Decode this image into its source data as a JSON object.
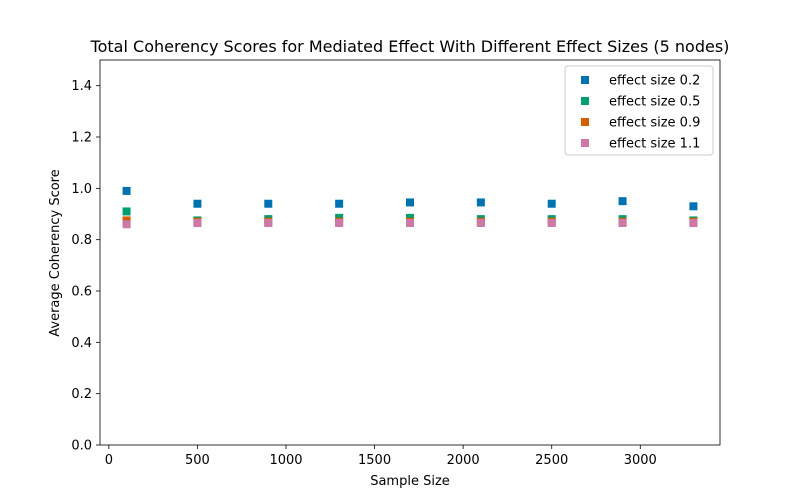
{
  "chart_data": {
    "type": "scatter",
    "title": "Total Coherency Scores for Mediated Effect With Different Effect Sizes (5 nodes)",
    "xlabel": "Sample Size",
    "ylabel": "Average Coherency Score",
    "xlim": [
      -50,
      3450
    ],
    "ylim": [
      0.0,
      1.5
    ],
    "xticks": [
      0,
      500,
      1000,
      1500,
      2000,
      2500,
      3000
    ],
    "yticks": [
      0.0,
      0.2,
      0.4,
      0.6,
      0.8,
      1.0,
      1.2,
      1.4
    ],
    "grid": false,
    "legend_position": "top-right",
    "marker": "square",
    "x": [
      100,
      500,
      900,
      1300,
      1700,
      2100,
      2500,
      2900,
      3300
    ],
    "series": [
      {
        "name": "effect size 0.2",
        "color": "#0072b2",
        "values": [
          0.99,
          0.94,
          0.94,
          0.94,
          0.945,
          0.945,
          0.94,
          0.95,
          0.93
        ]
      },
      {
        "name": "effect size 0.5",
        "color": "#009e73",
        "values": [
          0.91,
          0.875,
          0.88,
          0.885,
          0.885,
          0.88,
          0.88,
          0.88,
          0.875
        ]
      },
      {
        "name": "effect size 0.9",
        "color": "#d55e00",
        "values": [
          0.875,
          0.87,
          0.87,
          0.87,
          0.87,
          0.87,
          0.87,
          0.87,
          0.87
        ]
      },
      {
        "name": "effect size 1.1",
        "color": "#cc79a7",
        "values": [
          0.86,
          0.865,
          0.865,
          0.865,
          0.865,
          0.865,
          0.865,
          0.865,
          0.865
        ]
      }
    ]
  }
}
